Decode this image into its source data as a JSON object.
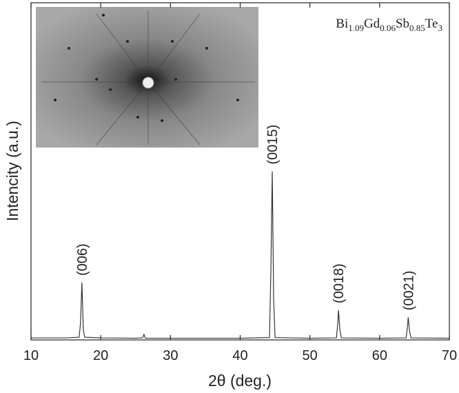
{
  "chart_data": {
    "type": "line",
    "x_label": "2θ (deg.)",
    "y_label": "Intencity (a.u.)",
    "sample_label": [
      "Bi",
      "1.09",
      "Gd",
      "0.06",
      "Sb",
      "0.85",
      "Te",
      "3"
    ],
    "x": [
      10,
      12,
      15,
      16.9,
      17.1,
      17.3,
      17.5,
      17.7,
      20,
      25,
      26.0,
      26.2,
      26.4,
      30,
      35,
      40,
      44.2,
      44.4,
      44.6,
      44.8,
      45.0,
      50,
      53.8,
      54.0,
      54.1,
      54.3,
      54.5,
      60,
      63.8,
      64.0,
      64.1,
      64.3,
      64.5,
      70
    ],
    "values": [
      0.6,
      0.6,
      0.6,
      0.8,
      5,
      17,
      3,
      0.8,
      0.6,
      0.5,
      0.6,
      1.6,
      0.5,
      0.5,
      0.5,
      0.5,
      0.7,
      20,
      50,
      12,
      0.7,
      0.5,
      0.6,
      5,
      8.8,
      3,
      0.6,
      0.5,
      0.6,
      4,
      6.7,
      2.5,
      0.6,
      0.5
    ],
    "color": "#333333",
    "xlim": [
      10,
      70
    ],
    "xticks": [
      10,
      20,
      30,
      40,
      50,
      60,
      70
    ],
    "ylim": [
      0,
      100
    ],
    "annotations": [
      {
        "text": "(006)",
        "x": 17.3,
        "y": 17
      },
      {
        "text": "(0015)",
        "x": 44.6,
        "y": 50
      },
      {
        "text": "(0018)",
        "x": 54.1,
        "y": 8.8
      },
      {
        "text": "(0021)",
        "x": 64.1,
        "y": 6.7
      }
    ]
  }
}
